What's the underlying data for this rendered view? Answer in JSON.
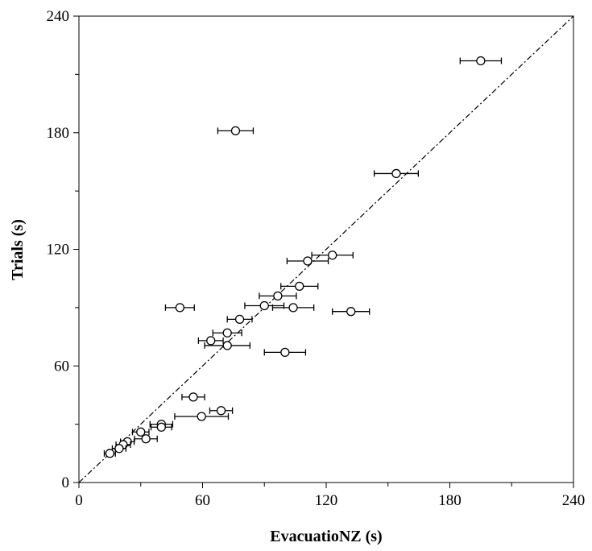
{
  "chart_data": {
    "type": "scatter",
    "x_label": "EvacuatioNZ (s)",
    "y_label": "Trials (s)",
    "x": [
      195,
      76,
      154,
      123,
      111,
      107,
      96.5,
      90,
      104,
      132,
      49,
      78,
      72,
      64,
      72,
      100,
      55.5,
      69,
      59.5,
      40,
      40,
      30,
      32.5,
      23.5,
      21.5,
      19.5,
      15
    ],
    "y": [
      217,
      181,
      159,
      117,
      114,
      101,
      96,
      91,
      90,
      88,
      90,
      84,
      77,
      73,
      70.5,
      67,
      44,
      37,
      34,
      30,
      28.5,
      26,
      22.5,
      21,
      19.5,
      17.5,
      15
    ],
    "xerr": [
      10,
      8.6,
      10.7,
      10,
      10,
      9,
      9,
      9.5,
      10,
      9,
      7,
      6,
      7,
      6,
      11,
      10,
      5.5,
      5.5,
      13,
      5.5,
      5,
      4,
      5.5,
      3.3,
      3.5,
      3.3,
      2.7
    ],
    "color": "#000000",
    "xlim": [
      0,
      240
    ],
    "ylim": [
      0,
      240
    ],
    "xticks": [
      0,
      60,
      120,
      180,
      240
    ],
    "yticks": [
      0,
      60,
      120,
      180,
      240
    ],
    "xminor_ticks": [
      30,
      90,
      150,
      210
    ],
    "yminor_ticks": [
      30,
      90,
      150,
      210
    ],
    "diagonal": true
  }
}
